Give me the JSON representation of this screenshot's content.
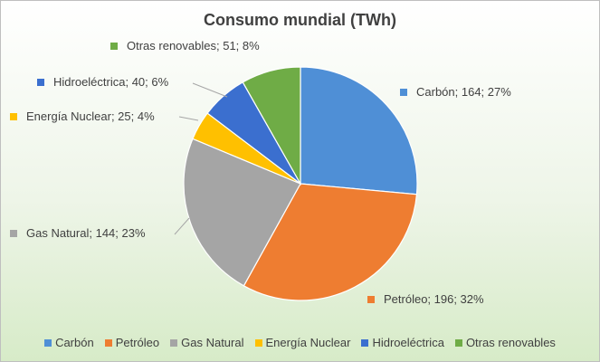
{
  "chart_data": {
    "type": "pie",
    "title": "Consumo mundial (TWh)",
    "slices": [
      {
        "label": "Carbón",
        "value": 164,
        "percent": "27%",
        "color": "#4f8fd6"
      },
      {
        "label": "Petróleo",
        "value": 196,
        "percent": "32%",
        "color": "#ee7d31"
      },
      {
        "label": "Gas Natural",
        "value": 144,
        "percent": "23%",
        "color": "#a5a5a5"
      },
      {
        "label": "Energía Nuclear",
        "value": 25,
        "percent": "4%",
        "color": "#ffc000"
      },
      {
        "label": "Hidroeléctrica",
        "value": 40,
        "percent": "6%",
        "color": "#3b6fcf"
      },
      {
        "label": "Otras renovables",
        "value": 51,
        "percent": "8%",
        "color": "#6fac46"
      }
    ],
    "data_labels": [
      "Carbón; 164; 27%",
      "Petróleo; 196; 32%",
      "Gas Natural; 144; 23%",
      "Energía Nuclear; 25; 4%",
      "Hidroeléctrica; 40; 6%",
      "Otras renovables; 51; 8%"
    ],
    "legend_position": "bottom"
  }
}
